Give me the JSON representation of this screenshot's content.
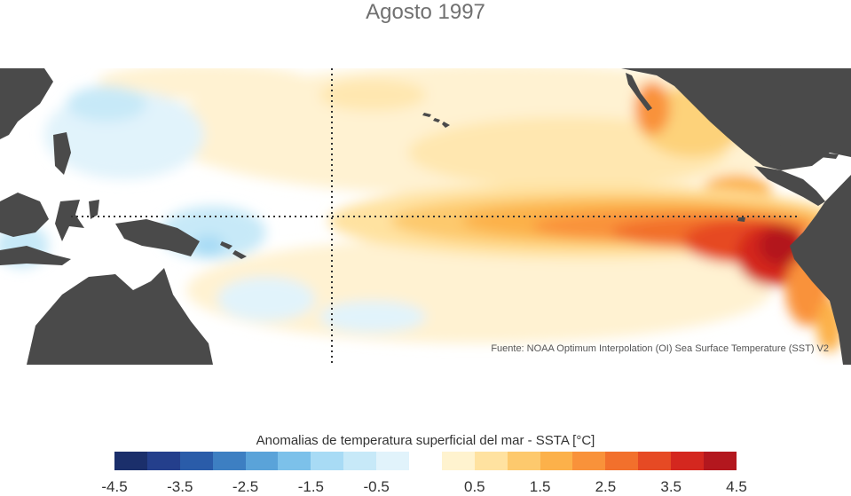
{
  "title": "Agosto 1997",
  "source": "Fuente: NOAA Optimum Interpolation (OI) Sea Surface Temperature (SST) V2",
  "colorbar": {
    "title": "Anomalias de temperatura superficial del mar - SSTA  [°C]",
    "tick_labels": [
      "-4.5",
      "-3.5",
      "-2.5",
      "-1.5",
      "-0.5",
      "0.5",
      "1.5",
      "2.5",
      "3.5",
      "4.5"
    ],
    "colors": [
      "#1b2f6b",
      "#243f8c",
      "#2a5ca9",
      "#3d7fc2",
      "#5aa3d9",
      "#7cc1ea",
      "#a8dbf5",
      "#c7e9f8",
      "#e1f3fb",
      "#ffffff",
      "#fff3cf",
      "#ffe2a0",
      "#fdc96d",
      "#fcb14a",
      "#f9923a",
      "#f2702c",
      "#e64a24",
      "#d4271f",
      "#b3171e"
    ]
  },
  "map": {
    "land_color": "#4a4a4a",
    "ocean_neutral": "#ffffff",
    "gridline_style": "dotted"
  }
}
